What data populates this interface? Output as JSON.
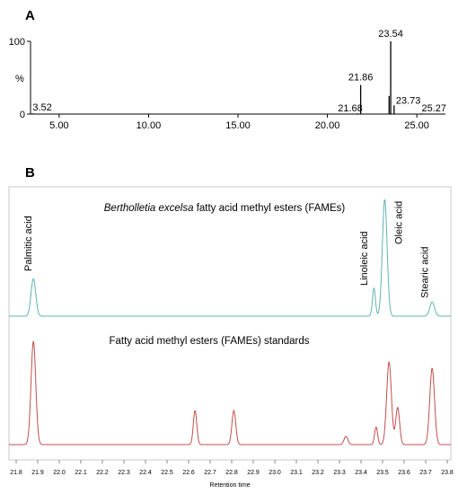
{
  "chart_data": [
    {
      "panel": "A",
      "type": "line",
      "xlim": [
        3.4,
        26.6
      ],
      "ylim": [
        0,
        100
      ],
      "x_ticks": [
        "5.00",
        "10.00",
        "15.00",
        "20.00",
        "25.00"
      ],
      "x_tick_values": [
        5,
        10,
        15,
        20,
        25
      ],
      "y_ticks": [
        "0",
        "100"
      ],
      "y_tick_values": [
        0,
        100
      ],
      "ylabel": "%",
      "series": [
        {
          "color": "#000000",
          "peaks": [
            {
              "x": 3.52,
              "y": 1,
              "label": "3.52"
            },
            {
              "x": 21.68,
              "y": 1,
              "label": "21.68"
            },
            {
              "x": 21.86,
              "y": 40,
              "label": "21.86"
            },
            {
              "x": 23.45,
              "y": 25
            },
            {
              "x": 23.54,
              "y": 100,
              "label": "23.54"
            },
            {
              "x": 23.73,
              "y": 12,
              "label": "23.73"
            },
            {
              "x": 25.27,
              "y": 1,
              "label": "25.27"
            }
          ]
        }
      ]
    },
    {
      "panel": "B",
      "type": "line",
      "xlim": [
        21.8,
        23.8
      ],
      "x_ticks": [
        "21.8",
        "21.9",
        "22.0",
        "22.1",
        "22.2",
        "22.3",
        "22.4",
        "22.5",
        "22.6",
        "22.7",
        "22.8",
        "22.9",
        "23.0",
        "23.1",
        "23.2",
        "23.3",
        "23.4",
        "23.5",
        "23.6",
        "23.7",
        "23.8"
      ],
      "x_tick_values": [
        21.8,
        21.9,
        22.0,
        22.1,
        22.2,
        22.3,
        22.4,
        22.5,
        22.6,
        22.7,
        22.8,
        22.9,
        23.0,
        23.1,
        23.2,
        23.3,
        23.4,
        23.5,
        23.6,
        23.7,
        23.8
      ],
      "xlabel": "Retention time",
      "series": [
        {
          "name_italic": "Bertholletia excelsa",
          "name_rest": " fatty acid methyl esters (FAMEs)",
          "color": "#5fb3b3",
          "peaks": [
            {
              "x": 21.88,
              "h": 0.32,
              "w": 0.011
            },
            {
              "x": 23.46,
              "h": 0.24,
              "w": 0.007
            },
            {
              "x": 23.51,
              "h": 1.0,
              "w": 0.011
            },
            {
              "x": 23.73,
              "h": 0.12,
              "w": 0.011
            }
          ]
        },
        {
          "name": "Fatty acid methyl esters (FAMEs) standards",
          "color": "#c0504d",
          "peaks": [
            {
              "x": 21.88,
              "h": 1.0,
              "w": 0.011
            },
            {
              "x": 22.63,
              "h": 0.33,
              "w": 0.008
            },
            {
              "x": 22.81,
              "h": 0.33,
              "w": 0.009
            },
            {
              "x": 23.33,
              "h": 0.08,
              "w": 0.009
            },
            {
              "x": 23.47,
              "h": 0.17,
              "w": 0.007
            },
            {
              "x": 23.53,
              "h": 0.8,
              "w": 0.011
            },
            {
              "x": 23.57,
              "h": 0.36,
              "w": 0.009
            },
            {
              "x": 23.73,
              "h": 0.74,
              "w": 0.011
            }
          ]
        }
      ],
      "annotations": [
        {
          "text": "Palmitic acid",
          "x": 21.87
        },
        {
          "text": "Linoleic acid",
          "x": 23.43
        },
        {
          "text": "Oleic acid",
          "x": 23.59
        },
        {
          "text": "Stearic acid",
          "x": 23.71
        }
      ]
    }
  ],
  "panel_labels": {
    "a": "A",
    "b": "B"
  }
}
